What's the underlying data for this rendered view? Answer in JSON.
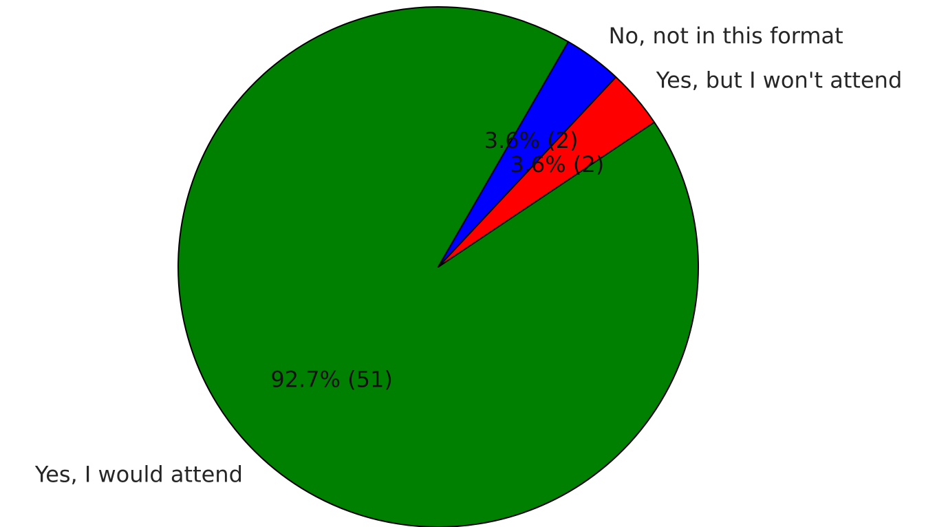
{
  "chart_data": {
    "type": "pie",
    "slices": [
      {
        "label": "Yes, I would attend",
        "value": 51,
        "percent": 92.7,
        "pct_label": "92.7%  (51)",
        "color": "#008000"
      },
      {
        "label": "Yes, but I won't attend",
        "value": 2,
        "percent": 3.6,
        "pct_label": "3.6%  (2)",
        "color": "#ff0000"
      },
      {
        "label": "No, not in this format",
        "value": 2,
        "percent": 3.6,
        "pct_label": "3.6%  (2)",
        "color": "#0000ff"
      }
    ],
    "start_angle_deg": 60,
    "direction": "counterclockwise",
    "legend": "none"
  }
}
